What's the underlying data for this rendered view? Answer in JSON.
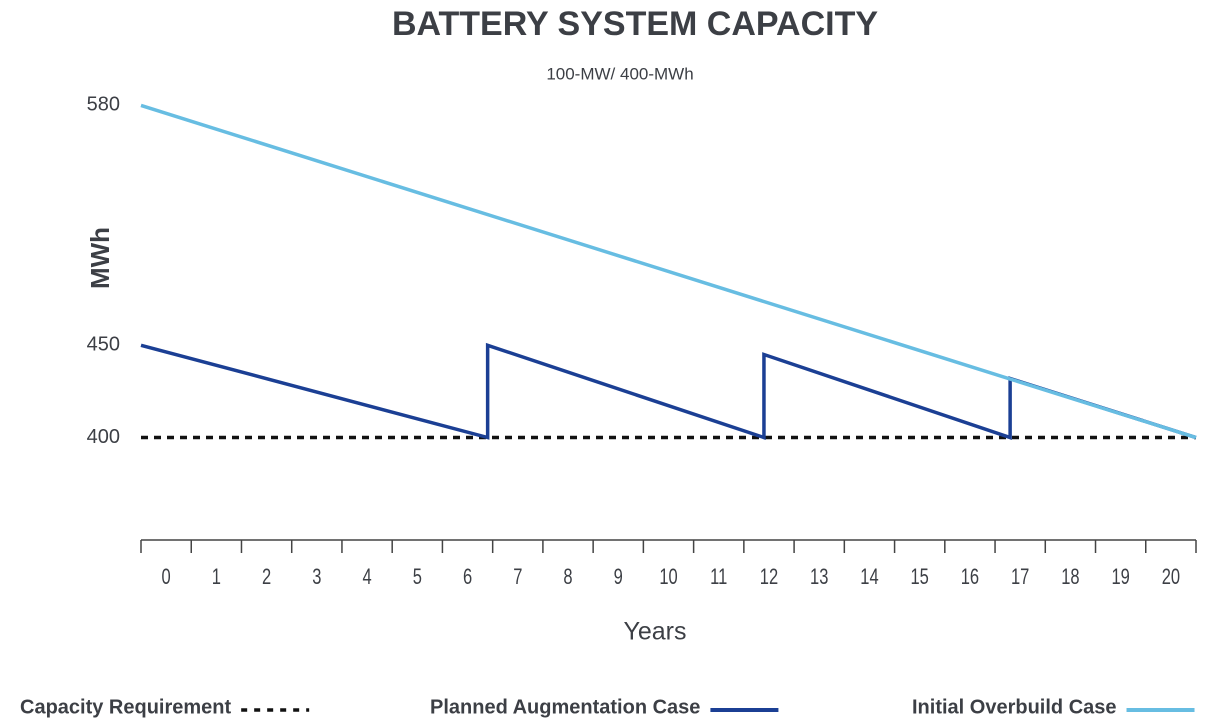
{
  "chart_data": {
    "type": "line",
    "title": "BATTERY SYSTEM CAPACITY",
    "subtitle": "100-MW/ 400-MWh",
    "ylabel": "MWh",
    "xlabel": "Years",
    "xlim": [
      0,
      21
    ],
    "xticks": [
      {
        "value": 0.5,
        "label": "0"
      },
      {
        "value": 1.5,
        "label": "1"
      },
      {
        "value": 2.5,
        "label": "2"
      },
      {
        "value": 3.5,
        "label": "3"
      },
      {
        "value": 4.5,
        "label": "4"
      },
      {
        "value": 5.5,
        "label": "5"
      },
      {
        "value": 6.5,
        "label": "6"
      },
      {
        "value": 7.5,
        "label": "7"
      },
      {
        "value": 8.5,
        "label": "8"
      },
      {
        "value": 9.5,
        "label": "9"
      },
      {
        "value": 10.5,
        "label": "10"
      },
      {
        "value": 11.5,
        "label": "11"
      },
      {
        "value": 12.5,
        "label": "12"
      },
      {
        "value": 13.5,
        "label": "13"
      },
      {
        "value": 14.5,
        "label": "14"
      },
      {
        "value": 15.5,
        "label": "15"
      },
      {
        "value": 16.5,
        "label": "16"
      },
      {
        "value": 17.5,
        "label": "17"
      },
      {
        "value": 18.5,
        "label": "18"
      },
      {
        "value": 19.5,
        "label": "19"
      },
      {
        "value": 20.5,
        "label": "20"
      }
    ],
    "ylim": [
      345,
      590
    ],
    "yticks": [
      400,
      450,
      580
    ],
    "series": [
      {
        "name": "Capacity Requirement",
        "color": "#111111",
        "dash": true,
        "x": [
          0,
          21
        ],
        "values": [
          400,
          400
        ]
      },
      {
        "name": "Planned Augmentation Case",
        "color": "#1b3f94",
        "dash": false,
        "x": [
          0,
          6.9,
          6.9,
          12.4,
          12.4,
          17.3,
          17.3,
          21
        ],
        "values": [
          450,
          400,
          450,
          400,
          445,
          400,
          432,
          400
        ]
      },
      {
        "name": "Initial Overbuild Case",
        "color": "#67bde2",
        "dash": false,
        "x": [
          0,
          21
        ],
        "values": [
          580,
          400
        ]
      }
    ]
  }
}
